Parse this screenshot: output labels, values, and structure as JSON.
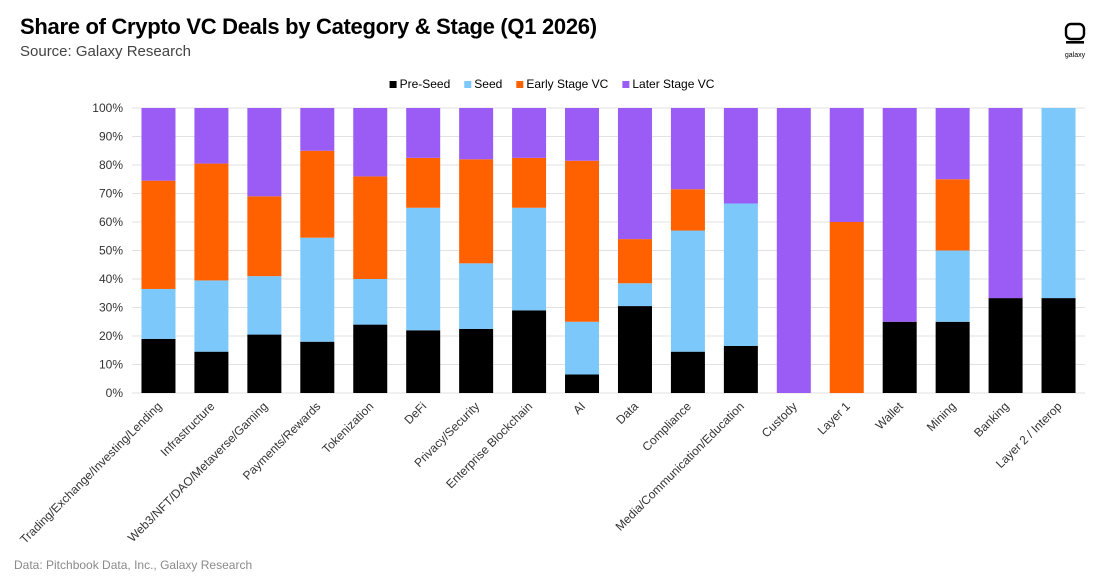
{
  "title": "Share of Crypto VC Deals by Category & Stage (Q1 2026)",
  "subtitle": "Source: Galaxy Research",
  "footer": "Data: Pitchbook Data, Inc., Galaxy Research",
  "logo_text": "galaxy",
  "chart_data": {
    "type": "bar",
    "stacked": true,
    "ylim": [
      0,
      100
    ],
    "yticks": [
      "0%",
      "10%",
      "20%",
      "30%",
      "40%",
      "50%",
      "60%",
      "70%",
      "80%",
      "90%",
      "100%"
    ],
    "legend_position": "top-center",
    "categories": [
      "Trading/Exchange/Investing/Lending",
      "Infrastructure",
      "Web3/NFT/DAO/Metaverse/Gaming",
      "Payments/Rewards",
      "Tokenization",
      "DeFi",
      "Privacy/Security",
      "Enterprise Blockchain",
      "AI",
      "Data",
      "Compliance",
      "Media/Communication/Education",
      "Custody",
      "Layer 1",
      "Wallet",
      "Mining",
      "Banking",
      "Layer 2 / Interop"
    ],
    "series": [
      {
        "name": "Pre-Seed",
        "color": "#000000",
        "values": [
          19,
          14.5,
          20.5,
          18,
          24,
          22,
          22.5,
          29,
          6.5,
          30.5,
          14.5,
          16.5,
          0,
          0,
          25,
          25,
          33.3,
          33.3
        ]
      },
      {
        "name": "Seed",
        "color": "#7cc8fa",
        "values": [
          17.5,
          25,
          20.5,
          36.5,
          16,
          43,
          23,
          36,
          18.5,
          8,
          42.5,
          50,
          0,
          0,
          0,
          25,
          0,
          66.7
        ]
      },
      {
        "name": "Early Stage VC",
        "color": "#ff6000",
        "values": [
          38,
          41,
          28,
          30.5,
          36,
          17.5,
          36.5,
          17.5,
          56.5,
          15.5,
          14.5,
          0,
          0,
          60,
          0,
          25,
          0,
          0
        ]
      },
      {
        "name": "Later Stage VC",
        "color": "#9a5cf5",
        "values": [
          25.5,
          19.5,
          31,
          15,
          24,
          17.5,
          18,
          17.5,
          18.5,
          46,
          28.5,
          33.5,
          100,
          40,
          75,
          25,
          66.7,
          0
        ]
      }
    ]
  }
}
